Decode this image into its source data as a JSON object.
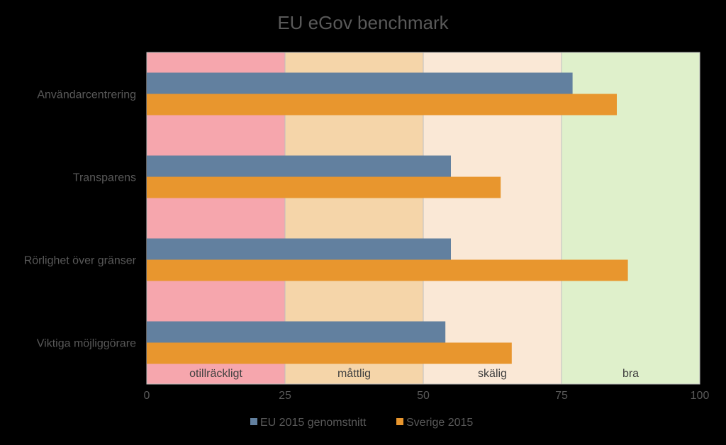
{
  "chart_data": {
    "type": "bar",
    "orientation": "horizontal",
    "title": "EU eGov benchmark",
    "categories": [
      "Användarcentrering",
      "Transparens",
      "Rörlighet över gränser",
      "Viktiga möjliggörare"
    ],
    "series": [
      {
        "name": "EU 2015 genomstnitt",
        "color": "#62809F",
        "values": [
          77,
          55,
          55,
          54
        ]
      },
      {
        "name": "Sverige 2015",
        "color": "#E8962E",
        "values": [
          85,
          64,
          87,
          66
        ]
      }
    ],
    "xlim": [
      0,
      100
    ],
    "x_ticks": [
      "0",
      "25",
      "50",
      "75",
      "100"
    ],
    "bands": [
      {
        "label": "otillräckligt",
        "from": 0,
        "to": 25,
        "color": "#F6A6AD"
      },
      {
        "label": "måttlig",
        "from": 25,
        "to": 50,
        "color": "#F5D5A9"
      },
      {
        "label": "skälig",
        "from": 50,
        "to": 75,
        "color": "#FAE8D6"
      },
      {
        "label": "bra",
        "from": 75,
        "to": 100,
        "color": "#DFF0CB"
      }
    ],
    "legend_position": "bottom",
    "grid": false,
    "background": "#000000",
    "text_color": "#595959"
  }
}
